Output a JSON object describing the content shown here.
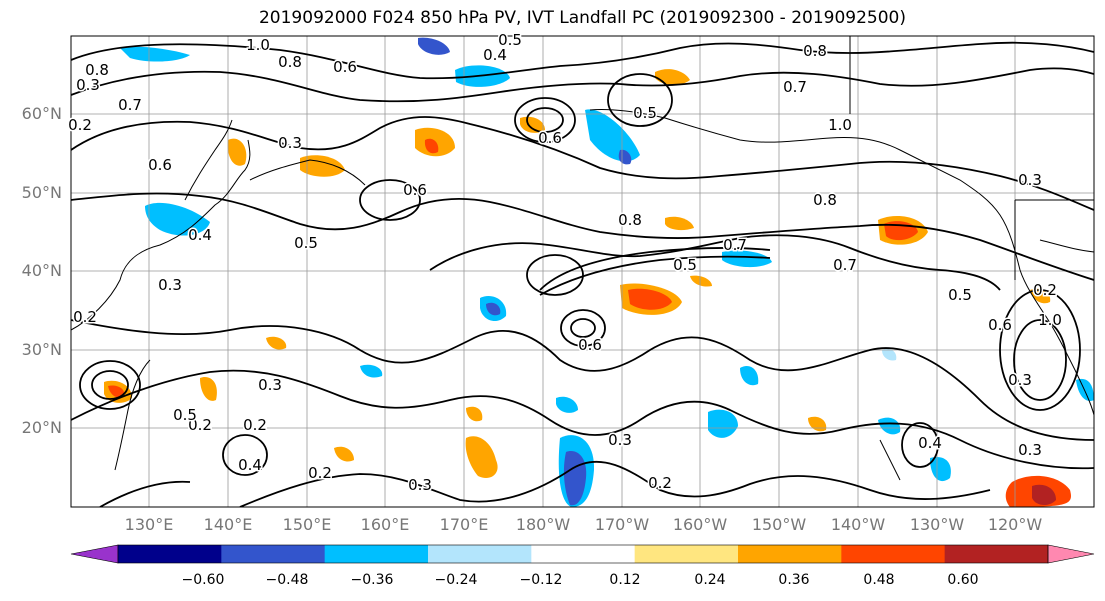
{
  "title": "2019092000 F024 850 hPa PV, IVT Landfall PC (2019092300 - 2019092500)",
  "map": {
    "lat_labels": [
      "60°N",
      "50°N",
      "40°N",
      "30°N",
      "20°N"
    ],
    "lon_labels": [
      "130°E",
      "140°E",
      "150°E",
      "160°E",
      "170°E",
      "180°W",
      "170°W",
      "160°W",
      "150°W",
      "140°W",
      "130°W",
      "120°W"
    ],
    "contour_labels": [
      "1.0",
      "0.8",
      "0.6",
      "0.5",
      "0.4",
      "0.3",
      "0.8",
      "0.7",
      "0.6",
      "0.5",
      "1.0",
      "0.8",
      "0.6",
      "0.5",
      "0.3",
      "0.4",
      "0.3",
      "0.2",
      "0.6",
      "0.7",
      "0.5",
      "0.3",
      "0.2",
      "0.3",
      "0.2",
      "0.3",
      "0.4",
      "0.2",
      "0.3",
      "0.2",
      "1.0",
      "0.8",
      "0.7",
      "0.6",
      "0.5",
      "0.4",
      "0.3",
      "0.2",
      "0.3",
      "0.2",
      "0.8",
      "0.7",
      "0.6",
      "0.5"
    ]
  },
  "colorbar": {
    "colors": [
      "#9933cc",
      "#00008b",
      "#3355cc",
      "#00bfff",
      "#b3e5fc",
      "#ffffff",
      "#ffe680",
      "#ffa500",
      "#ff4500",
      "#b22222",
      "#ff88b0"
    ],
    "ticks": [
      "−0.60",
      "−0.48",
      "−0.36",
      "−0.24",
      "−0.12",
      "0.12",
      "0.24",
      "0.36",
      "0.48",
      "0.60"
    ]
  }
}
